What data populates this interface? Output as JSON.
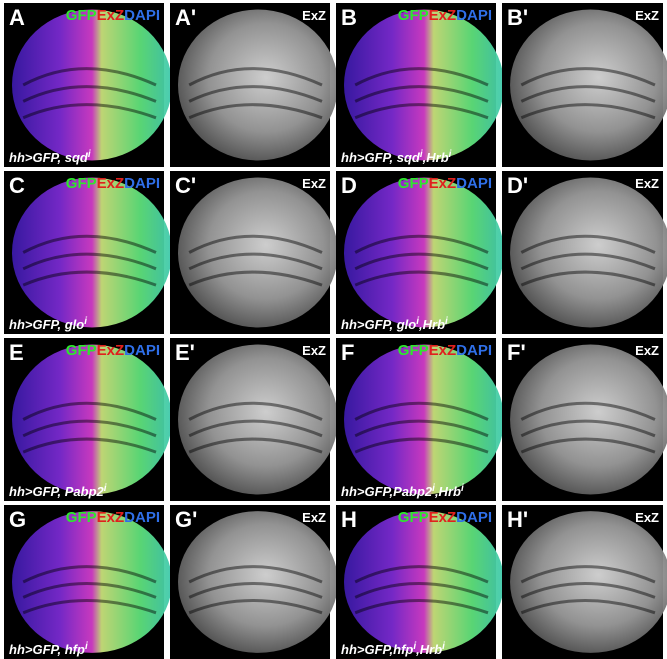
{
  "panels": [
    {
      "letter": "A",
      "channels": [
        {
          "text": "GFP",
          "color": "#2ee62e"
        },
        {
          "text": "ExZ",
          "color": "#e0201e"
        },
        {
          "text": "DAPI",
          "color": "#2f6fe8"
        }
      ],
      "caption": [
        {
          "text": "hh>GFP, sqd"
        },
        {
          "text": "i",
          "sup": true
        }
      ]
    },
    {
      "letter": "A'",
      "channels": [
        {
          "text": "ExZ",
          "color": "#ffffff"
        }
      ]
    },
    {
      "letter": "B",
      "channels": [
        {
          "text": "GFP",
          "color": "#2ee62e"
        },
        {
          "text": "ExZ",
          "color": "#e0201e"
        },
        {
          "text": "DAPI",
          "color": "#2f6fe8"
        }
      ],
      "caption": [
        {
          "text": "hh>GFP, sqd"
        },
        {
          "text": "i",
          "sup": true
        },
        {
          "text": ",Hrb"
        },
        {
          "text": "i",
          "sup": true
        }
      ]
    },
    {
      "letter": "B'",
      "channels": [
        {
          "text": "ExZ",
          "color": "#ffffff"
        }
      ]
    },
    {
      "letter": "C",
      "channels": [
        {
          "text": "GFP",
          "color": "#2ee62e"
        },
        {
          "text": "ExZ",
          "color": "#e0201e"
        },
        {
          "text": "DAPI",
          "color": "#2f6fe8"
        }
      ],
      "caption": [
        {
          "text": "hh>GFP, glo"
        },
        {
          "text": "i",
          "sup": true
        }
      ]
    },
    {
      "letter": "C'",
      "channels": [
        {
          "text": "ExZ",
          "color": "#ffffff"
        }
      ]
    },
    {
      "letter": "D",
      "channels": [
        {
          "text": "GFP",
          "color": "#2ee62e"
        },
        {
          "text": "ExZ",
          "color": "#e0201e"
        },
        {
          "text": "DAPI",
          "color": "#2f6fe8"
        }
      ],
      "caption": [
        {
          "text": "hh>GFP, glo"
        },
        {
          "text": "i",
          "sup": true
        },
        {
          "text": ",Hrb"
        },
        {
          "text": "i",
          "sup": true
        }
      ]
    },
    {
      "letter": "D'",
      "channels": [
        {
          "text": "ExZ",
          "color": "#ffffff"
        }
      ]
    },
    {
      "letter": "E",
      "channels": [
        {
          "text": "GFP",
          "color": "#2ee62e"
        },
        {
          "text": "ExZ",
          "color": "#e0201e"
        },
        {
          "text": "DAPI",
          "color": "#2f6fe8"
        }
      ],
      "caption": [
        {
          "text": "hh>GFP, Pabp2"
        },
        {
          "text": "i",
          "sup": true
        }
      ]
    },
    {
      "letter": "E'",
      "channels": [
        {
          "text": "ExZ",
          "color": "#ffffff"
        }
      ]
    },
    {
      "letter": "F",
      "channels": [
        {
          "text": "GFP",
          "color": "#2ee62e"
        },
        {
          "text": "ExZ",
          "color": "#e0201e"
        },
        {
          "text": "DAPI",
          "color": "#2f6fe8"
        }
      ],
      "caption": [
        {
          "text": "hh>GFP,Pabp2"
        },
        {
          "text": "i",
          "sup": true
        },
        {
          "text": ",Hrb"
        },
        {
          "text": "i",
          "sup": true
        }
      ]
    },
    {
      "letter": "F'",
      "channels": [
        {
          "text": "ExZ",
          "color": "#ffffff"
        }
      ]
    },
    {
      "letter": "G",
      "channels": [
        {
          "text": "GFP",
          "color": "#2ee62e"
        },
        {
          "text": "ExZ",
          "color": "#e0201e"
        },
        {
          "text": "DAPI",
          "color": "#2f6fe8"
        }
      ],
      "caption": [
        {
          "text": "hh>GFP, hfp"
        },
        {
          "text": "i",
          "sup": true
        }
      ]
    },
    {
      "letter": "G'",
      "channels": [
        {
          "text": "ExZ",
          "color": "#ffffff"
        }
      ]
    },
    {
      "letter": "H",
      "channels": [
        {
          "text": "GFP",
          "color": "#2ee62e"
        },
        {
          "text": "ExZ",
          "color": "#e0201e"
        },
        {
          "text": "DAPI",
          "color": "#2f6fe8"
        }
      ],
      "caption": [
        {
          "text": "hh>GFP,hfp"
        },
        {
          "text": "i",
          "sup": true
        },
        {
          "text": ",Hrb"
        },
        {
          "text": "i",
          "sup": true
        }
      ]
    },
    {
      "letter": "H'",
      "channels": [
        {
          "text": "ExZ",
          "color": "#ffffff"
        }
      ]
    }
  ]
}
